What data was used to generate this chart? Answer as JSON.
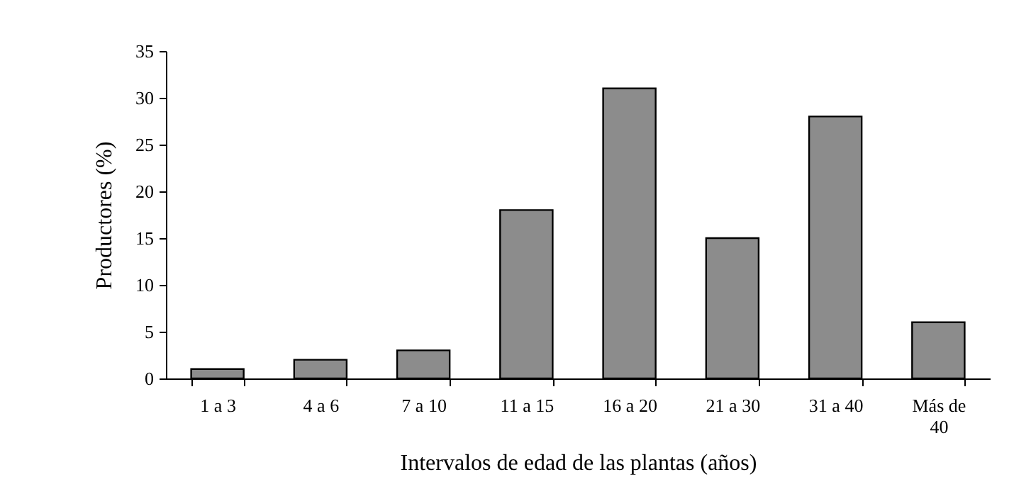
{
  "chart_data": {
    "type": "bar",
    "xlabel": "Intervalos de edad de las plantas (años)",
    "ylabel": "Productores (%)",
    "categories": [
      "1 a 3",
      "4 a 6",
      "7 a 10",
      "11 a 15",
      "16 a 20",
      "21 a 30",
      "31 a 40",
      "Más de 40"
    ],
    "values": [
      1,
      2,
      3,
      18,
      31,
      15,
      28,
      6
    ],
    "color": "#8c8c8c",
    "ylim": [
      0,
      35
    ],
    "yticks": [
      0,
      5,
      10,
      15,
      20,
      25,
      30,
      35
    ],
    "grid": false
  }
}
